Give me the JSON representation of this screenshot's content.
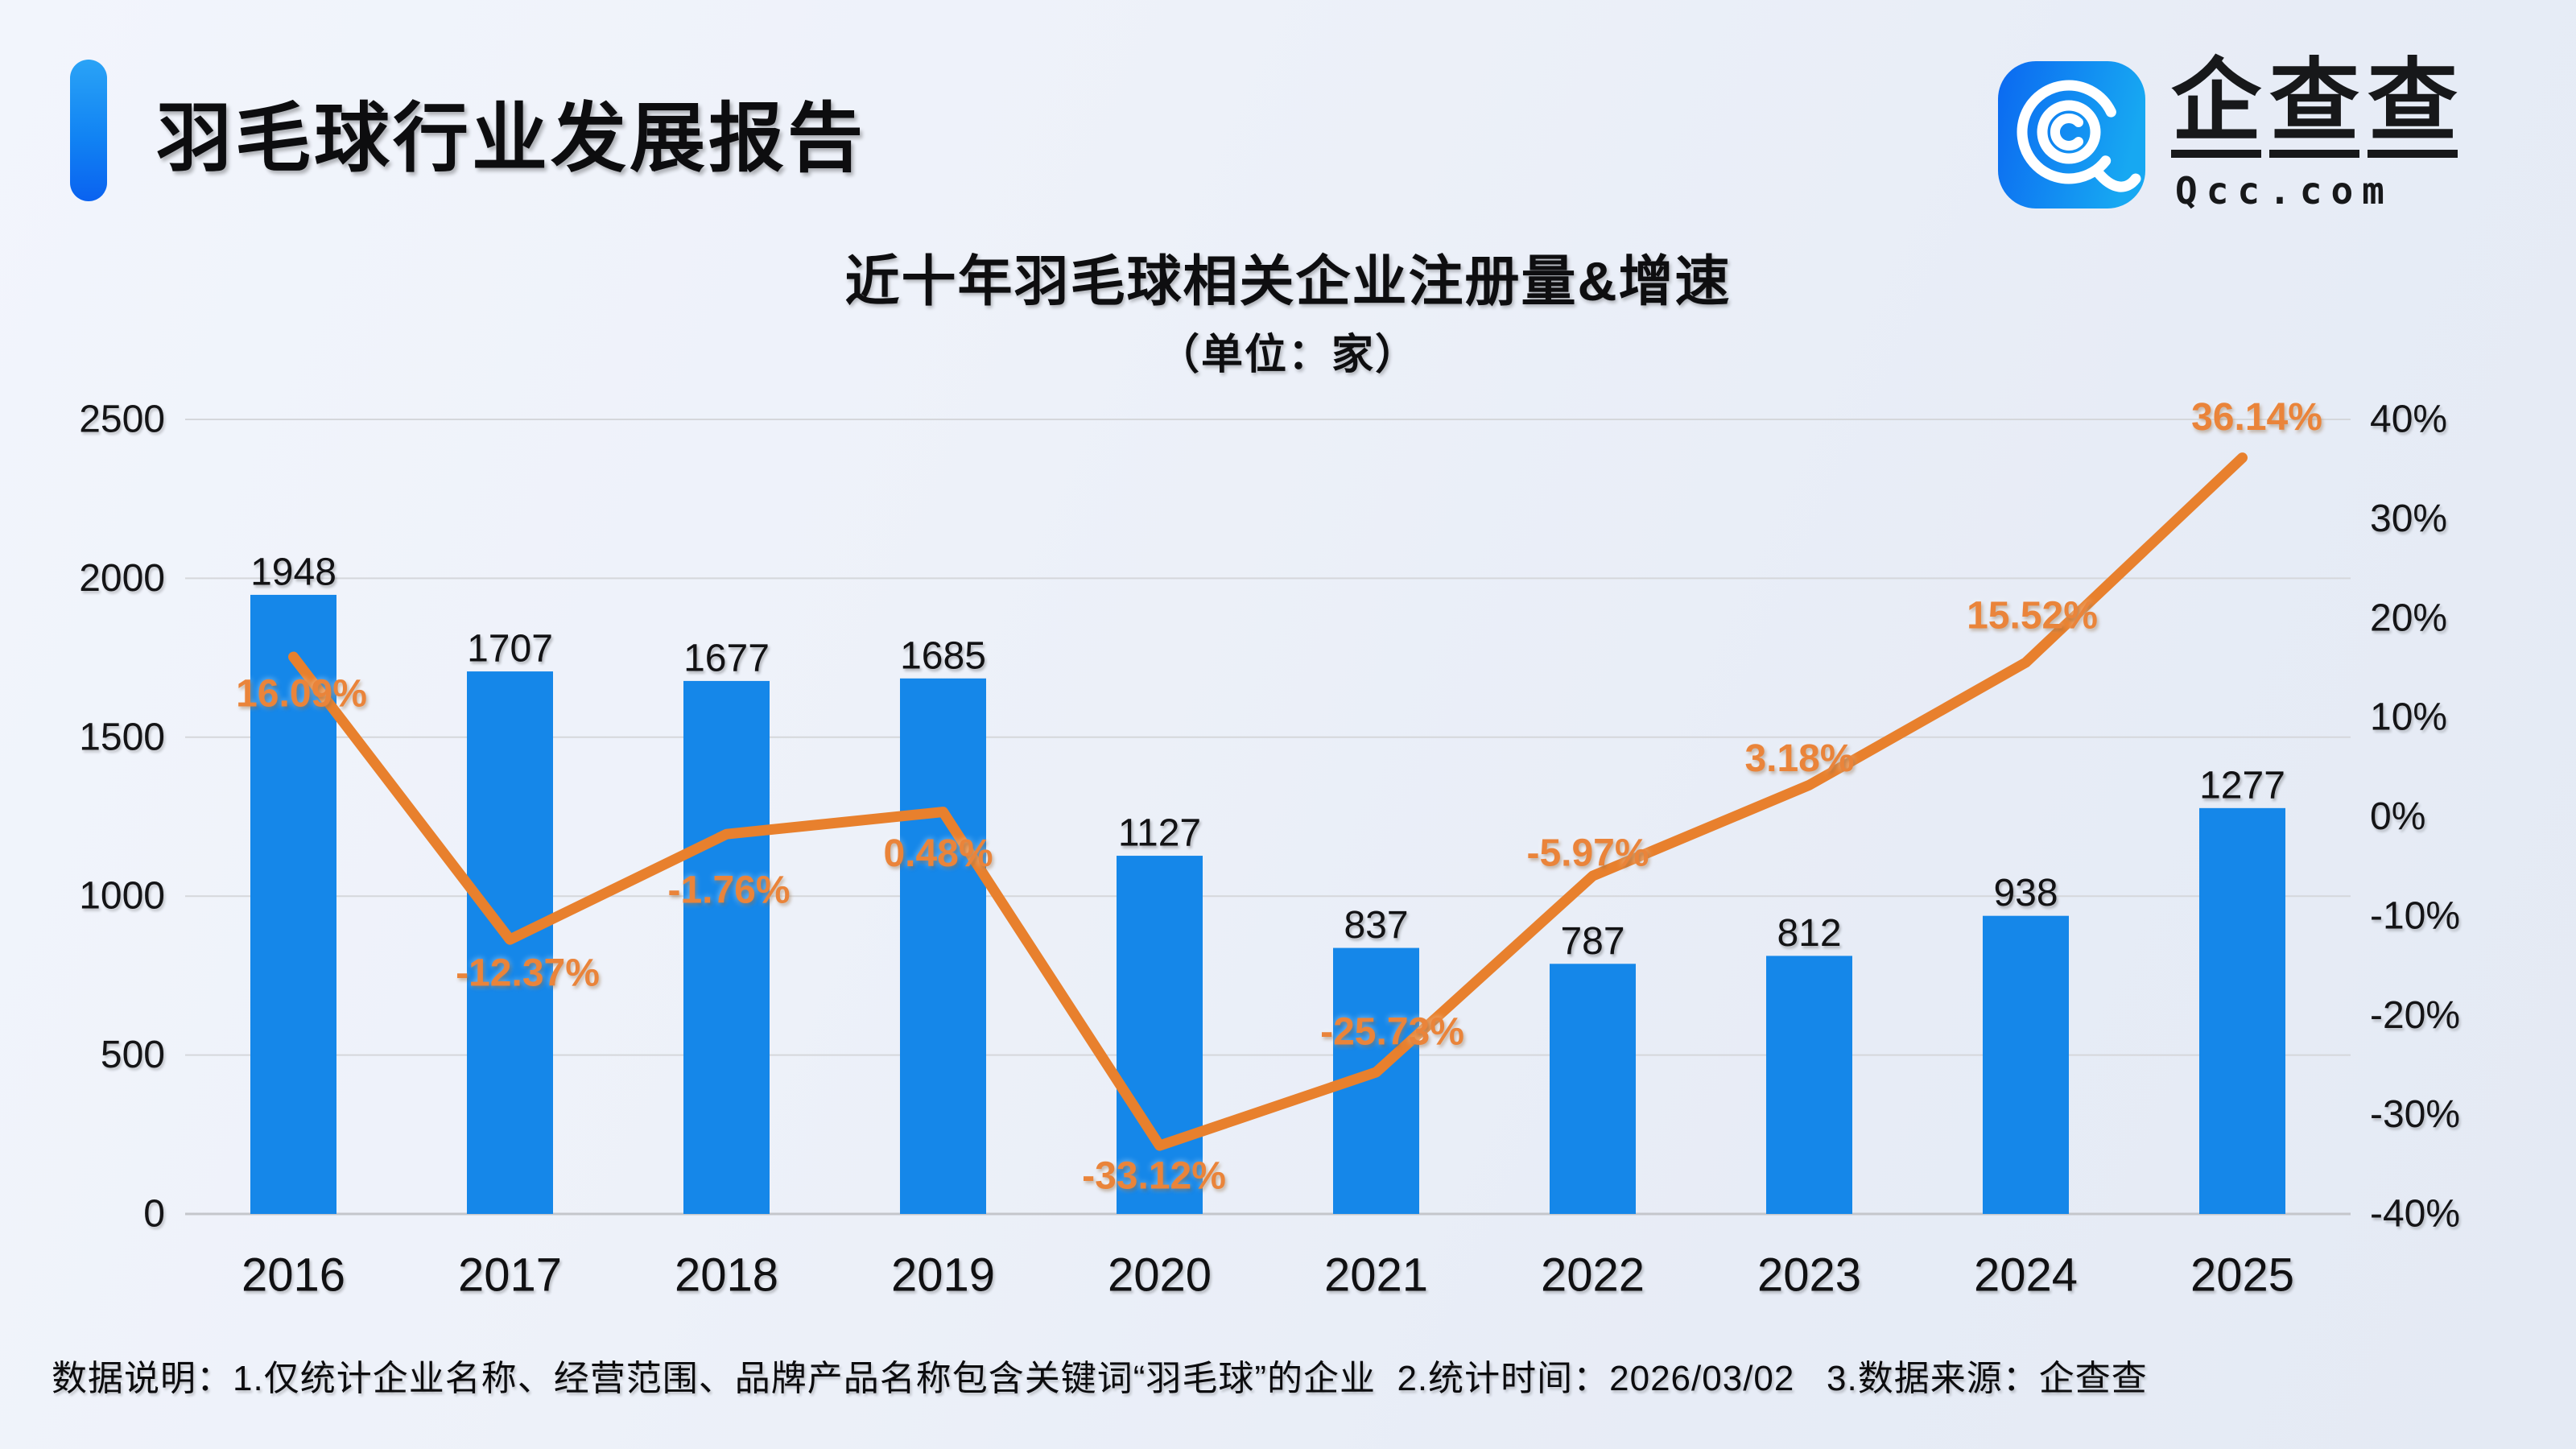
{
  "header": {
    "title": "羽毛球行业发展报告",
    "logo": {
      "brand": "企查查",
      "domain": "Qcc.com"
    }
  },
  "chart": {
    "title": "近十年羽毛球相关企业注册量&增速",
    "subtitle": "（单位：家）"
  },
  "chart_data": {
    "type": "combo",
    "categories": [
      "2016",
      "2017",
      "2018",
      "2019",
      "2020",
      "2021",
      "2022",
      "2023",
      "2024",
      "2025"
    ],
    "series": [
      {
        "name": "注册量",
        "type": "bar",
        "axis": "left",
        "color": "#1587e9",
        "values": [
          1948,
          1707,
          1677,
          1685,
          1127,
          837,
          787,
          812,
          938,
          1277
        ],
        "labels": [
          "1948",
          "1707",
          "1677",
          "1685",
          "1127",
          "837",
          "787",
          "812",
          "938",
          "1277"
        ]
      },
      {
        "name": "增速",
        "type": "line",
        "axis": "right",
        "color": "#e8802d",
        "label_color": "#ea843a",
        "values": [
          16.09,
          -12.37,
          -1.76,
          0.48,
          -33.12,
          -25.73,
          -5.97,
          3.18,
          15.52,
          36.14
        ],
        "labels": [
          "16.09%",
          "-12.37%",
          "-1.76%",
          "0.48%",
          "-33.12%",
          "-25.73%",
          "-5.97%",
          "3.18%",
          "15.52%",
          "36.14%"
        ],
        "label_offsets": [
          [
            10,
            46
          ],
          [
            22,
            42
          ],
          [
            3,
            70
          ],
          [
            -6,
            52
          ],
          [
            -7,
            38
          ],
          [
            20,
            -50
          ],
          [
            -6,
            -28
          ],
          [
            -12,
            -33
          ],
          [
            8,
            -58
          ],
          [
            18,
            -50
          ]
        ]
      }
    ],
    "left_axis": {
      "min": 0,
      "max": 2500,
      "step": 500,
      "tick_labels": [
        "0",
        "500",
        "1000",
        "1500",
        "2000",
        "2500"
      ]
    },
    "right_axis": {
      "min": -40,
      "max": 40,
      "step": 10,
      "tick_labels": [
        "40%",
        "30%",
        "20%",
        "10%",
        "0%",
        "-10%",
        "-20%",
        "-30%",
        "-40%"
      ]
    },
    "grid": "horizontal",
    "legend": "none",
    "xlabel": "",
    "ylabel_left": "家",
    "ylabel_right": "%"
  },
  "footnote": "数据说明：1.仅统计企业名称、经营范围、品牌产品名称包含关键词“羽毛球”的企业  2.统计时间：2026/03/02   3.数据来源：企查查"
}
